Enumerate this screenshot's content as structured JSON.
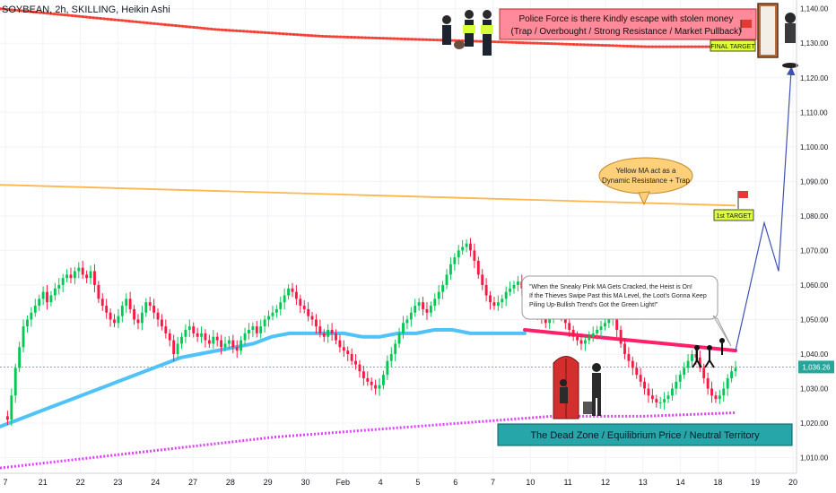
{
  "header": {
    "symbol_line": "SOYBEAN, 2h, SKILLING, Heikin Ashi"
  },
  "price_scale": {
    "ticks": [
      "1,140.00",
      "1,130.00",
      "1,120.00",
      "1,110.00",
      "1,100.00",
      "1,090.00",
      "1,080.00",
      "1,070.00",
      "1,060.00",
      "1,050.00",
      "1,040.00",
      "1,030.00",
      "1,020.00",
      "1,010.00"
    ],
    "current_price_label": "1,036.26"
  },
  "time_axis": {
    "ticks": [
      "7",
      "21",
      "22",
      "23",
      "24",
      "27",
      "28",
      "29",
      "30",
      "Feb",
      "4",
      "5",
      "6",
      "7",
      "10",
      "11",
      "12",
      "13",
      "14",
      "18",
      "19",
      "20"
    ]
  },
  "annotations": {
    "police_box_line1": "Police Force is there Kindly escape with stolen money",
    "police_box_line2": "(Trap / Overbought / Strong Resistance / Market Pullback)",
    "final_target": "FINAL TARGET",
    "yellow_ma_bubble_line1": "Yellow MA act as a",
    "yellow_ma_bubble_line2": "Dynamic Resistance + Trap",
    "first_target": "1st TARGET",
    "pink_ma_note_line1": "\"When the Sneaky Pink MA Gets Cracked, the Heist is On!",
    "pink_ma_note_line2": "If the Thieves Swipe Past this MA Level, the Loot's Gonna Keep",
    "pink_ma_note_line3": "Piling Up-Bullish Trend's Got the Green Light!\"",
    "dead_zone": "The Dead Zone / Equilibrium Price / Neutral Territory"
  },
  "colors": {
    "up_candle": "#26a69a",
    "bright_up": "#00c853",
    "down_candle": "#ff1744",
    "blue_ma": "#4fc3f7",
    "pink_ma": "#ff1f6b",
    "yellow_ma": "#ffb74d",
    "magenta_ma": "#e040fb",
    "red_dotted_ma": "#f44336",
    "dead_zone_fill": "#26a6a8",
    "police_box_fill": "#ff8a9a",
    "target_fill": "#dfff3a"
  },
  "chart_data": {
    "type": "candlestick",
    "title": "SOYBEAN, 2h, SKILLING, Heikin Ashi",
    "ylim": [
      1006,
      1142
    ],
    "y_ticks": [
      1140,
      1130,
      1120,
      1110,
      1100,
      1090,
      1080,
      1070,
      1060,
      1050,
      1040,
      1030,
      1020,
      1010
    ],
    "current_price": 1036.26,
    "series": [
      {
        "name": "Heikin Ashi candles",
        "close_path": [
          1022,
          1021,
          1028,
          1036,
          1042,
          1048,
          1050,
          1052,
          1054,
          1056,
          1058,
          1055,
          1057,
          1059,
          1060,
          1062,
          1063,
          1062,
          1064,
          1065,
          1063,
          1062,
          1064,
          1060,
          1056,
          1054,
          1052,
          1050,
          1049,
          1051,
          1054,
          1056,
          1053,
          1050,
          1049,
          1052,
          1055,
          1054,
          1052,
          1050,
          1048,
          1046,
          1044,
          1040,
          1043,
          1045,
          1047,
          1048,
          1046,
          1045,
          1046,
          1044,
          1043,
          1045,
          1044,
          1042,
          1043,
          1044,
          1042,
          1041,
          1044,
          1046,
          1047,
          1048,
          1046,
          1048,
          1050,
          1051,
          1052,
          1053,
          1055,
          1057,
          1059,
          1058,
          1056,
          1054,
          1053,
          1051,
          1050,
          1048,
          1046,
          1045,
          1047,
          1046,
          1044,
          1042,
          1041,
          1040,
          1038,
          1037,
          1035,
          1033,
          1032,
          1031,
          1030,
          1031,
          1034,
          1038,
          1040,
          1043,
          1046,
          1049,
          1050,
          1052,
          1054,
          1055,
          1053,
          1052,
          1054,
          1056,
          1058,
          1060,
          1063,
          1066,
          1068,
          1070,
          1071,
          1072,
          1070,
          1067,
          1063,
          1060,
          1057,
          1055,
          1054,
          1055,
          1056,
          1058,
          1059,
          1060,
          1061,
          1059,
          1057,
          1055,
          1053,
          1052,
          1050,
          1049,
          1051,
          1052,
          1053,
          1051,
          1049,
          1047,
          1045,
          1044,
          1043,
          1044,
          1045,
          1046,
          1047,
          1048,
          1049,
          1050,
          1051,
          1047,
          1043,
          1040,
          1038,
          1036,
          1034,
          1032,
          1030,
          1028,
          1027,
          1026,
          1026,
          1027,
          1028,
          1030,
          1032,
          1034,
          1036,
          1038,
          1040,
          1039,
          1036,
          1033,
          1030,
          1028,
          1027,
          1028,
          1030,
          1033,
          1035,
          1036
        ]
      },
      {
        "name": "Blue MA",
        "values": [
          1019,
          1021,
          1023,
          1025,
          1027,
          1029,
          1031,
          1033,
          1035,
          1037,
          1039,
          1040,
          1041,
          1042,
          1043,
          1045,
          1046,
          1046,
          1046,
          1046,
          1045,
          1045,
          1046,
          1046,
          1047,
          1047,
          1046,
          1046,
          1046,
          1046
        ]
      },
      {
        "name": "Pink MA",
        "values": [
          1047,
          1046,
          1045,
          1044,
          1043,
          1042,
          1041
        ]
      },
      {
        "name": "Yellow MA",
        "values": [
          1089,
          1086,
          1083
        ]
      },
      {
        "name": "Magenta MA",
        "values": [
          1007,
          1010,
          1013,
          1016,
          1018,
          1020,
          1022,
          1022,
          1023
        ]
      },
      {
        "name": "Red dotted MA",
        "values": [
          1140,
          1137,
          1134,
          1132,
          1131,
          1130,
          1129,
          1129
        ]
      },
      {
        "name": "Projection path",
        "values": [
          1041,
          1078,
          1064,
          1122
        ]
      }
    ],
    "levels": {
      "first_target": 1081,
      "final_target": 1130,
      "dead_zone_top": 1021,
      "dead_zone_bottom": 1014
    }
  }
}
